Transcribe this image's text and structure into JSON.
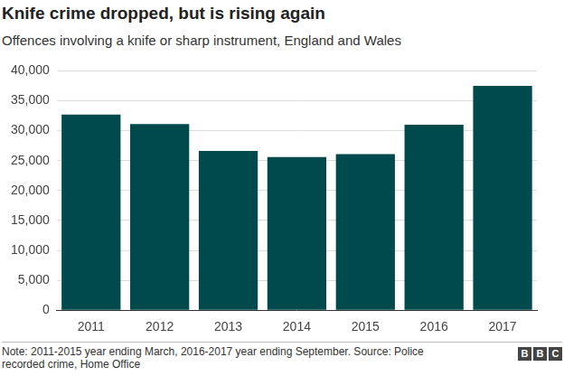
{
  "chart_data": {
    "type": "bar",
    "title": "Knife crime dropped, but is rising again",
    "subtitle": "Offences involving a knife or sharp instrument, England and Wales",
    "categories": [
      "2011",
      "2012",
      "2013",
      "2014",
      "2015",
      "2016",
      "2017"
    ],
    "values": [
      32700,
      31100,
      26600,
      25600,
      26100,
      31000,
      37500
    ],
    "color": "#004a4d",
    "ylim": [
      0,
      40000
    ],
    "yticks": [
      0,
      {
        "value": 5000,
        "label": "5,000"
      },
      {
        "value": 10000,
        "label": "10,000"
      },
      {
        "value": 15000,
        "label": "15,000"
      },
      {
        "value": 20000,
        "label": "20,000"
      },
      {
        "value": 25000,
        "label": "25,000"
      },
      {
        "value": 30000,
        "label": "30,000"
      },
      {
        "value": 35000,
        "label": "35,000"
      },
      {
        "value": 40000,
        "label": "40,000"
      }
    ],
    "grid": true,
    "note": "Note: 2011-2015 year ending March, 2016-2017 year ending September. Source: Police recorded crime, Home Office",
    "logo": "BBC"
  }
}
